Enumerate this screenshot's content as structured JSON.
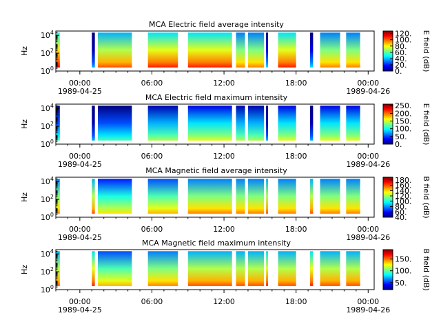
{
  "time_ticks": [
    "00:00",
    "06:00",
    "12:00",
    "18:00",
    "00:00"
  ],
  "date_ticks": [
    "1989-04-25",
    "",
    "",
    "",
    "1989-04-26"
  ],
  "y_label": "Hz",
  "y_ticks": [
    {
      "base": "10",
      "exp": "0"
    },
    {
      "base": "10",
      "exp": "2"
    },
    {
      "base": "10",
      "exp": "4"
    }
  ],
  "colormap": "jet",
  "colors": {
    "jet": [
      "#00007f",
      "#0000ff",
      "#007fff",
      "#00ffff",
      "#7fff7f",
      "#ffff00",
      "#ff7f00",
      "#ff0000",
      "#7f0000"
    ]
  },
  "chart_data": [
    {
      "type": "heatmap",
      "title": "MCA  Electric field average intensity",
      "ylabel": "Hz",
      "yscale": "log",
      "ylim": [
        1,
        30000
      ],
      "xlim": [
        "1989-04-24T22:00",
        "1989-04-26T00:30"
      ],
      "colorbar": {
        "label": "E field (dB)",
        "range": [
          0,
          128
        ],
        "ticks": [
          "0.",
          "20.",
          "40.",
          "60.",
          "80.",
          "100.",
          "120."
        ]
      },
      "segments": [
        {
          "start": "1989-04-24T22:00",
          "end": "1989-04-24T22:20",
          "level": 0.65
        },
        {
          "start": "1989-04-25T01:00",
          "end": "1989-04-25T01:15",
          "level": 0.05
        },
        {
          "start": "1989-04-25T01:30",
          "end": "1989-04-25T04:20",
          "level": 0.55
        },
        {
          "start": "1989-04-25T05:40",
          "end": "1989-04-25T08:10",
          "level": 0.6
        },
        {
          "start": "1989-04-25T09:00",
          "end": "1989-04-25T12:40",
          "level": 0.6
        },
        {
          "start": "1989-04-25T13:00",
          "end": "1989-04-25T13:45",
          "level": 0.5
        },
        {
          "start": "1989-04-25T14:00",
          "end": "1989-04-25T15:20",
          "level": 0.5
        },
        {
          "start": "1989-04-25T15:30",
          "end": "1989-04-25T15:40",
          "level": 0.1
        },
        {
          "start": "1989-04-25T16:30",
          "end": "1989-04-25T18:00",
          "level": 0.6
        },
        {
          "start": "1989-04-25T19:10",
          "end": "1989-04-25T19:25",
          "level": 0.1
        },
        {
          "start": "1989-04-25T20:00",
          "end": "1989-04-25T21:40",
          "level": 0.5
        },
        {
          "start": "1989-04-25T22:10",
          "end": "1989-04-25T23:20",
          "level": 0.5
        }
      ]
    },
    {
      "type": "heatmap",
      "title": "MCA  Electric field maximum intensity",
      "ylabel": "Hz",
      "yscale": "log",
      "ylim": [
        1,
        30000
      ],
      "xlim": [
        "1989-04-24T22:00",
        "1989-04-26T00:30"
      ],
      "colorbar": {
        "label": "E field (dB)",
        "range": [
          0,
          260
        ],
        "ticks": [
          "0.",
          "50.",
          "100.",
          "150.",
          "200.",
          "250."
        ]
      },
      "segments": [
        {
          "start": "1989-04-24T22:00",
          "end": "1989-04-24T22:20",
          "level": 0.2
        },
        {
          "start": "1989-04-25T01:00",
          "end": "1989-04-25T01:15",
          "level": 0.05
        },
        {
          "start": "1989-04-25T01:30",
          "end": "1989-04-25T04:20",
          "level": 0.2
        },
        {
          "start": "1989-04-25T05:40",
          "end": "1989-04-25T08:10",
          "level": 0.3
        },
        {
          "start": "1989-04-25T09:00",
          "end": "1989-04-25T12:40",
          "level": 0.35
        },
        {
          "start": "1989-04-25T13:00",
          "end": "1989-04-25T13:45",
          "level": 0.3
        },
        {
          "start": "1989-04-25T14:00",
          "end": "1989-04-25T15:20",
          "level": 0.3
        },
        {
          "start": "1989-04-25T15:30",
          "end": "1989-04-25T15:40",
          "level": 0.05
        },
        {
          "start": "1989-04-25T16:30",
          "end": "1989-04-25T18:00",
          "level": 0.35
        },
        {
          "start": "1989-04-25T19:10",
          "end": "1989-04-25T19:25",
          "level": 0.05
        },
        {
          "start": "1989-04-25T20:00",
          "end": "1989-04-25T21:40",
          "level": 0.35
        },
        {
          "start": "1989-04-25T22:10",
          "end": "1989-04-25T23:20",
          "level": 0.35
        }
      ]
    },
    {
      "type": "heatmap",
      "title": "MCA  Magnetic field average intensity",
      "ylabel": "Hz",
      "yscale": "log",
      "ylim": [
        1,
        30000
      ],
      "xlim": [
        "1989-04-24T22:00",
        "1989-04-26T00:30"
      ],
      "colorbar": {
        "label": "B field (dB)",
        "range": [
          40,
          190
        ],
        "ticks": [
          "40.",
          "60.",
          "80.",
          "100.",
          "120.",
          "140.",
          "160.",
          "180."
        ]
      },
      "segments": [
        {
          "start": "1989-04-24T22:00",
          "end": "1989-04-24T22:20",
          "level": 0.5
        },
        {
          "start": "1989-04-25T01:00",
          "end": "1989-04-25T01:15",
          "level": 0.55
        },
        {
          "start": "1989-04-25T01:30",
          "end": "1989-04-25T04:20",
          "level": 0.4
        },
        {
          "start": "1989-04-25T05:40",
          "end": "1989-04-25T08:10",
          "level": 0.45
        },
        {
          "start": "1989-04-25T09:00",
          "end": "1989-04-25T12:40",
          "level": 0.5
        },
        {
          "start": "1989-04-25T13:00",
          "end": "1989-04-25T13:45",
          "level": 0.5
        },
        {
          "start": "1989-04-25T14:00",
          "end": "1989-04-25T15:20",
          "level": 0.5
        },
        {
          "start": "1989-04-25T15:30",
          "end": "1989-04-25T15:40",
          "level": 0.55
        },
        {
          "start": "1989-04-25T16:30",
          "end": "1989-04-25T18:00",
          "level": 0.5
        },
        {
          "start": "1989-04-25T19:10",
          "end": "1989-04-25T19:25",
          "level": 0.55
        },
        {
          "start": "1989-04-25T20:00",
          "end": "1989-04-25T21:40",
          "level": 0.5
        },
        {
          "start": "1989-04-25T22:10",
          "end": "1989-04-25T23:20",
          "level": 0.5
        }
      ]
    },
    {
      "type": "heatmap",
      "title": "MCA  Magnetic field maximum intensity",
      "ylabel": "Hz",
      "yscale": "log",
      "ylim": [
        1,
        30000
      ],
      "xlim": [
        "1989-04-24T22:00",
        "1989-04-26T00:30"
      ],
      "colorbar": {
        "label": "B field (dB)",
        "range": [
          20,
          190
        ],
        "ticks": [
          "50.",
          "100.",
          "150."
        ]
      },
      "segments": [
        {
          "start": "1989-04-24T22:00",
          "end": "1989-04-24T22:20",
          "level": 0.55
        },
        {
          "start": "1989-04-25T01:00",
          "end": "1989-04-25T01:15",
          "level": 0.6
        },
        {
          "start": "1989-04-25T01:30",
          "end": "1989-04-25T04:20",
          "level": 0.45
        },
        {
          "start": "1989-04-25T05:40",
          "end": "1989-04-25T08:10",
          "level": 0.5
        },
        {
          "start": "1989-04-25T09:00",
          "end": "1989-04-25T12:40",
          "level": 0.55
        },
        {
          "start": "1989-04-25T13:00",
          "end": "1989-04-25T13:45",
          "level": 0.55
        },
        {
          "start": "1989-04-25T14:00",
          "end": "1989-04-25T15:20",
          "level": 0.55
        },
        {
          "start": "1989-04-25T15:30",
          "end": "1989-04-25T15:40",
          "level": 0.6
        },
        {
          "start": "1989-04-25T16:30",
          "end": "1989-04-25T18:00",
          "level": 0.55
        },
        {
          "start": "1989-04-25T19:10",
          "end": "1989-04-25T19:25",
          "level": 0.6
        },
        {
          "start": "1989-04-25T20:00",
          "end": "1989-04-25T21:40",
          "level": 0.55
        },
        {
          "start": "1989-04-25T22:10",
          "end": "1989-04-25T23:20",
          "level": 0.55
        }
      ]
    }
  ]
}
